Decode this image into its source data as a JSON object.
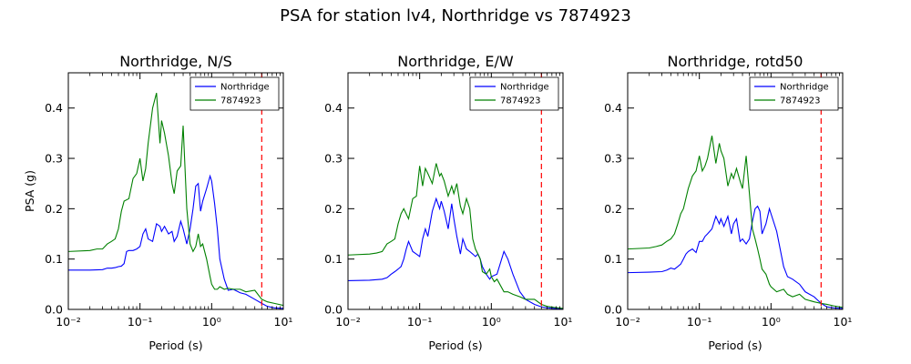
{
  "figure": {
    "suptitle": "PSA for station lv4, Northridge vs 7874923"
  },
  "chart_data": [
    {
      "type": "line",
      "title": "Northridge, N/S",
      "xlabel": "Period (s)",
      "ylabel": "PSA (g)",
      "xscale": "log",
      "xlim": [
        0.01,
        10
      ],
      "ylim": [
        0,
        0.47
      ],
      "xticks": [
        "10⁻²",
        "10⁻¹",
        "10⁰",
        "10¹"
      ],
      "yticks": [
        "0.0",
        "0.1",
        "0.2",
        "0.3",
        "0.4"
      ],
      "legend_position": "top-right",
      "vline": {
        "x": 5,
        "color": "#ff0000",
        "style": "dashed"
      },
      "series": [
        {
          "name": "Northridge",
          "color": "#0000ff",
          "x": [
            0.01,
            0.02,
            0.03,
            0.035,
            0.04,
            0.045,
            0.05,
            0.055,
            0.06,
            0.065,
            0.07,
            0.08,
            0.09,
            0.1,
            0.11,
            0.12,
            0.13,
            0.15,
            0.17,
            0.19,
            0.2,
            0.22,
            0.25,
            0.28,
            0.3,
            0.33,
            0.37,
            0.4,
            0.45,
            0.5,
            0.55,
            0.6,
            0.65,
            0.7,
            0.75,
            0.85,
            0.95,
            1.0,
            1.1,
            1.2,
            1.3,
            1.5,
            1.7,
            2.0,
            2.5,
            3.0,
            4.0,
            5.0,
            6.0,
            7.5,
            10.0
          ],
          "y": [
            0.078,
            0.078,
            0.079,
            0.082,
            0.082,
            0.083,
            0.085,
            0.086,
            0.091,
            0.115,
            0.117,
            0.117,
            0.12,
            0.125,
            0.15,
            0.16,
            0.14,
            0.135,
            0.17,
            0.165,
            0.155,
            0.165,
            0.15,
            0.155,
            0.135,
            0.145,
            0.175,
            0.16,
            0.13,
            0.16,
            0.2,
            0.245,
            0.25,
            0.195,
            0.215,
            0.24,
            0.265,
            0.255,
            0.21,
            0.16,
            0.1,
            0.06,
            0.038,
            0.04,
            0.033,
            0.03,
            0.02,
            0.012,
            0.006,
            0.003,
            0.002
          ]
        },
        {
          "name": "7874923",
          "color": "#008000",
          "x": [
            0.01,
            0.02,
            0.025,
            0.03,
            0.035,
            0.04,
            0.045,
            0.05,
            0.055,
            0.06,
            0.07,
            0.08,
            0.09,
            0.1,
            0.11,
            0.12,
            0.13,
            0.15,
            0.17,
            0.19,
            0.2,
            0.22,
            0.25,
            0.28,
            0.3,
            0.33,
            0.37,
            0.4,
            0.45,
            0.5,
            0.55,
            0.6,
            0.65,
            0.7,
            0.75,
            0.85,
            0.95,
            1.0,
            1.1,
            1.2,
            1.3,
            1.5,
            1.7,
            2.0,
            2.5,
            3.0,
            4.0,
            5.0,
            6.0,
            7.5,
            10.0
          ],
          "y": [
            0.115,
            0.117,
            0.12,
            0.12,
            0.13,
            0.135,
            0.14,
            0.16,
            0.195,
            0.215,
            0.22,
            0.26,
            0.27,
            0.3,
            0.255,
            0.28,
            0.33,
            0.4,
            0.43,
            0.33,
            0.375,
            0.35,
            0.305,
            0.25,
            0.23,
            0.275,
            0.285,
            0.365,
            0.2,
            0.13,
            0.115,
            0.125,
            0.15,
            0.125,
            0.13,
            0.1,
            0.065,
            0.05,
            0.04,
            0.04,
            0.045,
            0.04,
            0.042,
            0.04,
            0.04,
            0.035,
            0.038,
            0.02,
            0.015,
            0.012,
            0.008
          ]
        }
      ]
    },
    {
      "type": "line",
      "title": "Northridge, E/W",
      "xlabel": "Period (s)",
      "ylabel": "",
      "xscale": "log",
      "xlim": [
        0.01,
        10
      ],
      "ylim": [
        0,
        0.47
      ],
      "xticks": [
        "10⁻²",
        "10⁻¹",
        "10⁰",
        "10¹"
      ],
      "yticks": [
        "0.0",
        "0.1",
        "0.2",
        "0.3",
        "0.4"
      ],
      "legend_position": "top-right",
      "vline": {
        "x": 5,
        "color": "#ff0000",
        "style": "dashed"
      },
      "series": [
        {
          "name": "Northridge",
          "color": "#0000ff",
          "x": [
            0.01,
            0.02,
            0.03,
            0.035,
            0.04,
            0.045,
            0.05,
            0.055,
            0.06,
            0.065,
            0.07,
            0.08,
            0.09,
            0.1,
            0.11,
            0.12,
            0.13,
            0.15,
            0.17,
            0.19,
            0.2,
            0.22,
            0.25,
            0.28,
            0.3,
            0.33,
            0.37,
            0.4,
            0.45,
            0.5,
            0.55,
            0.6,
            0.65,
            0.7,
            0.75,
            0.85,
            0.95,
            1.0,
            1.2,
            1.5,
            1.7,
            2.0,
            2.5,
            3.0,
            4.0,
            5.0,
            6.0,
            7.5,
            10.0
          ],
          "y": [
            0.057,
            0.058,
            0.06,
            0.063,
            0.07,
            0.075,
            0.08,
            0.085,
            0.1,
            0.12,
            0.135,
            0.115,
            0.11,
            0.105,
            0.14,
            0.16,
            0.145,
            0.195,
            0.22,
            0.2,
            0.215,
            0.195,
            0.16,
            0.21,
            0.18,
            0.145,
            0.11,
            0.14,
            0.12,
            0.115,
            0.11,
            0.105,
            0.11,
            0.1,
            0.085,
            0.07,
            0.06,
            0.065,
            0.07,
            0.115,
            0.1,
            0.07,
            0.035,
            0.02,
            0.01,
            0.005,
            0.003,
            0.002,
            0.001
          ]
        },
        {
          "name": "7874923",
          "color": "#008000",
          "x": [
            0.01,
            0.02,
            0.025,
            0.03,
            0.035,
            0.04,
            0.045,
            0.05,
            0.055,
            0.06,
            0.07,
            0.08,
            0.09,
            0.1,
            0.11,
            0.12,
            0.13,
            0.15,
            0.17,
            0.19,
            0.2,
            0.22,
            0.25,
            0.28,
            0.3,
            0.33,
            0.37,
            0.4,
            0.45,
            0.5,
            0.55,
            0.6,
            0.65,
            0.7,
            0.75,
            0.85,
            0.95,
            1.0,
            1.1,
            1.2,
            1.5,
            1.7,
            2.0,
            2.5,
            3.0,
            4.0,
            5.0,
            6.0,
            7.5,
            10.0
          ],
          "y": [
            0.108,
            0.11,
            0.112,
            0.115,
            0.13,
            0.135,
            0.14,
            0.17,
            0.19,
            0.2,
            0.18,
            0.22,
            0.225,
            0.285,
            0.245,
            0.28,
            0.27,
            0.25,
            0.29,
            0.265,
            0.27,
            0.255,
            0.225,
            0.245,
            0.23,
            0.25,
            0.205,
            0.19,
            0.22,
            0.2,
            0.14,
            0.12,
            0.11,
            0.1,
            0.075,
            0.07,
            0.08,
            0.065,
            0.055,
            0.06,
            0.035,
            0.035,
            0.03,
            0.025,
            0.02,
            0.02,
            0.01,
            0.006,
            0.004,
            0.002
          ]
        }
      ]
    },
    {
      "type": "line",
      "title": "Northridge, rotd50",
      "xlabel": "Period (s)",
      "ylabel": "",
      "xscale": "log",
      "xlim": [
        0.01,
        10
      ],
      "ylim": [
        0,
        0.47
      ],
      "xticks": [
        "10⁻²",
        "10⁻¹",
        "10⁰",
        "10¹"
      ],
      "yticks": [
        "0.0",
        "0.1",
        "0.2",
        "0.3",
        "0.4"
      ],
      "legend_position": "top-right",
      "vline": {
        "x": 5,
        "color": "#ff0000",
        "style": "dashed"
      },
      "series": [
        {
          "name": "Northridge",
          "color": "#0000ff",
          "x": [
            0.01,
            0.02,
            0.03,
            0.035,
            0.04,
            0.045,
            0.05,
            0.055,
            0.06,
            0.065,
            0.07,
            0.08,
            0.09,
            0.1,
            0.11,
            0.12,
            0.13,
            0.15,
            0.17,
            0.19,
            0.2,
            0.22,
            0.25,
            0.28,
            0.3,
            0.33,
            0.37,
            0.4,
            0.45,
            0.5,
            0.55,
            0.6,
            0.65,
            0.7,
            0.75,
            0.85,
            0.95,
            1.0,
            1.2,
            1.5,
            1.7,
            2.0,
            2.5,
            3.0,
            4.0,
            5.0,
            6.0,
            7.5,
            10.0
          ],
          "y": [
            0.073,
            0.074,
            0.075,
            0.078,
            0.082,
            0.08,
            0.085,
            0.09,
            0.1,
            0.11,
            0.115,
            0.12,
            0.113,
            0.135,
            0.135,
            0.145,
            0.15,
            0.16,
            0.185,
            0.17,
            0.18,
            0.165,
            0.185,
            0.15,
            0.17,
            0.18,
            0.135,
            0.14,
            0.13,
            0.14,
            0.175,
            0.2,
            0.205,
            0.195,
            0.15,
            0.17,
            0.2,
            0.19,
            0.155,
            0.085,
            0.065,
            0.06,
            0.05,
            0.035,
            0.025,
            0.012,
            0.005,
            0.003,
            0.002
          ]
        },
        {
          "name": "7874923",
          "color": "#008000",
          "x": [
            0.01,
            0.02,
            0.025,
            0.03,
            0.035,
            0.04,
            0.045,
            0.05,
            0.055,
            0.06,
            0.07,
            0.08,
            0.09,
            0.1,
            0.11,
            0.12,
            0.13,
            0.15,
            0.17,
            0.19,
            0.2,
            0.22,
            0.25,
            0.28,
            0.3,
            0.33,
            0.37,
            0.4,
            0.45,
            0.5,
            0.55,
            0.6,
            0.65,
            0.7,
            0.75,
            0.85,
            0.95,
            1.0,
            1.2,
            1.5,
            1.7,
            2.0,
            2.5,
            3.0,
            4.0,
            5.0,
            6.0,
            7.5,
            10.0
          ],
          "y": [
            0.12,
            0.122,
            0.125,
            0.128,
            0.135,
            0.14,
            0.15,
            0.17,
            0.19,
            0.2,
            0.24,
            0.265,
            0.275,
            0.305,
            0.275,
            0.285,
            0.3,
            0.345,
            0.29,
            0.33,
            0.315,
            0.3,
            0.245,
            0.27,
            0.26,
            0.28,
            0.255,
            0.24,
            0.305,
            0.23,
            0.16,
            0.14,
            0.12,
            0.1,
            0.08,
            0.07,
            0.05,
            0.045,
            0.035,
            0.04,
            0.03,
            0.025,
            0.03,
            0.02,
            0.015,
            0.012,
            0.01,
            0.007,
            0.004
          ]
        }
      ]
    }
  ]
}
